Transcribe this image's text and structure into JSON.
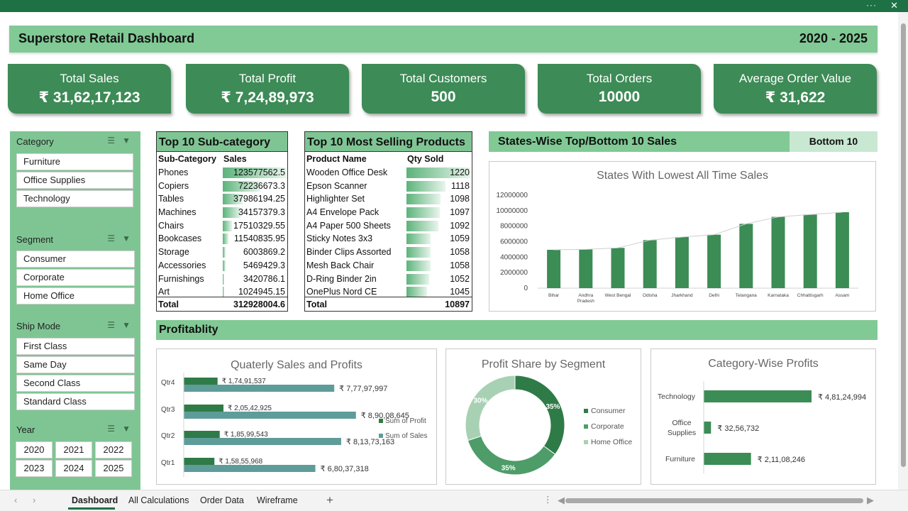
{
  "window": {
    "more_glyph": "···",
    "close_glyph": "✕"
  },
  "dashboard": {
    "title": "Superstore Retail Dashboard",
    "years": "2020 - 2025"
  },
  "kpis": [
    {
      "label": "Total Sales",
      "value": "₹ 31,62,17,123"
    },
    {
      "label": "Total Profit",
      "value": "₹ 7,24,89,973"
    },
    {
      "label": "Total Customers",
      "value": "500"
    },
    {
      "label": "Total Orders",
      "value": "10000"
    },
    {
      "label": "Average Order Value",
      "value": "₹ 31,622"
    }
  ],
  "slicers": {
    "category": {
      "title": "Category",
      "items": [
        "Furniture",
        "Office Supplies",
        "Technology"
      ]
    },
    "segment": {
      "title": "Segment",
      "items": [
        "Consumer",
        "Corporate",
        "Home Office"
      ]
    },
    "ship_mode": {
      "title": "Ship Mode",
      "items": [
        "First Class",
        "Same Day",
        "Second Class",
        "Standard Class"
      ]
    },
    "year": {
      "title": "Year",
      "items": [
        "2020",
        "2021",
        "2022",
        "2023",
        "2024",
        "2025"
      ]
    }
  },
  "subcategory_table": {
    "title": "Top 10 Sub-category",
    "headers": [
      "Sub-Category",
      "Sales"
    ],
    "rows": [
      {
        "name": "Phones",
        "value": "123577562.5",
        "num": 123577562.5
      },
      {
        "name": "Copiers",
        "value": "72236673.3",
        "num": 72236673.3
      },
      {
        "name": "Tables",
        "value": "37986194.25",
        "num": 37986194.25
      },
      {
        "name": "Machines",
        "value": "34157379.3",
        "num": 34157379.3
      },
      {
        "name": "Chairs",
        "value": "17510329.55",
        "num": 17510329.55
      },
      {
        "name": "Bookcases",
        "value": "11540835.95",
        "num": 11540835.95
      },
      {
        "name": "Storage",
        "value": "6003869.2",
        "num": 6003869.2
      },
      {
        "name": "Accessories",
        "value": "5469429.3",
        "num": 5469429.3
      },
      {
        "name": "Furnishings",
        "value": "3420786.1",
        "num": 3420786.1
      },
      {
        "name": "Art",
        "value": "1024945.15",
        "num": 1024945.15
      }
    ],
    "total_label": "Total",
    "total_value": "312928004.6"
  },
  "products_table": {
    "title": "Top 10 Most Selling Products",
    "headers": [
      "Product Name",
      "Qty Sold"
    ],
    "rows": [
      {
        "name": "Wooden Office Desk",
        "value": "1220",
        "num": 1220
      },
      {
        "name": "Epson Scanner",
        "value": "1118",
        "num": 1118
      },
      {
        "name": "Highlighter Set",
        "value": "1098",
        "num": 1098
      },
      {
        "name": "A4 Envelope Pack",
        "value": "1097",
        "num": 1097
      },
      {
        "name": "A4 Paper 500 Sheets",
        "value": "1092",
        "num": 1092
      },
      {
        "name": "Sticky Notes 3x3",
        "value": "1059",
        "num": 1059
      },
      {
        "name": "Binder Clips Assorted",
        "value": "1058",
        "num": 1058
      },
      {
        "name": "Mesh Back Chair",
        "value": "1058",
        "num": 1058
      },
      {
        "name": "D-Ring Binder 2in",
        "value": "1052",
        "num": 1052
      },
      {
        "name": "OnePlus Nord CE",
        "value": "1045",
        "num": 1045
      }
    ],
    "total_label": "Total",
    "total_value": "10897"
  },
  "states_section": {
    "title": "States-Wise Top/Bottom 10 Sales",
    "toggle": "Bottom 10"
  },
  "profit_section": {
    "title": "Profitablity"
  },
  "sheet_tabs": [
    "Dashboard",
    "All Calculations",
    "Order Data",
    "Wireframe"
  ],
  "colors": {
    "brand_green": "#1e7145",
    "kpi_green": "#3d8b56",
    "band_green": "#81c995",
    "bar_green": "#3b8c55",
    "teal_bar": "#5e9c9a"
  },
  "chart_data": [
    {
      "type": "bar",
      "title": "States With Lowest All Time Sales",
      "categories": [
        "Bihar",
        "Andhra Pradesh",
        "West Bengal",
        "Odisha",
        "Jharkhand",
        "Delhi",
        "Telangana",
        "Karnataka",
        "Chhattisgarh",
        "Assam"
      ],
      "values": [
        4950000,
        5000000,
        5200000,
        6200000,
        6600000,
        6900000,
        8300000,
        9200000,
        9500000,
        9800000
      ],
      "ylim": [
        0,
        12000000
      ],
      "yticks": [
        "12000000",
        "10000000",
        "8000000",
        "6000000",
        "4000000",
        "2000000",
        "0"
      ],
      "grid": false,
      "legend": "none"
    },
    {
      "type": "bar",
      "title": "Quaterly Sales and Profits",
      "categories": [
        "Qtr1",
        "Qtr2",
        "Qtr3",
        "Qtr4"
      ],
      "series": [
        {
          "name": "Sum of Profit",
          "values": [
            15855968,
            18599543,
            20542925,
            17491537
          ],
          "labels": [
            "₹ 1,58,55,968",
            "₹ 1,85,99,543",
            "₹ 2,05,42,925",
            "₹ 1,74,91,537"
          ]
        },
        {
          "name": "Sum of Sales",
          "values": [
            68037318,
            81373163,
            89008645,
            77797997
          ],
          "labels": [
            "₹ 6,80,37,318",
            "₹ 8,13,73,163",
            "₹ 8,90,08,645",
            "₹ 7,77,97,997"
          ]
        }
      ],
      "orientation": "horizontal",
      "legend": "right"
    },
    {
      "type": "pie",
      "title": "Profit Share by Segment",
      "categories": [
        "Consumer",
        "Corporate",
        "Home Office"
      ],
      "values": [
        35,
        35,
        30
      ],
      "labels": [
        "35%",
        "35%",
        "30%"
      ],
      "donut": true,
      "legend": "right"
    },
    {
      "type": "bar",
      "title": "Category-Wise Profits",
      "categories": [
        "Technology",
        "Office Supplies",
        "Furniture"
      ],
      "values": [
        48124994,
        3256732,
        21108246
      ],
      "labels": [
        "₹ 4,81,24,994",
        "₹ 32,56,732",
        "₹ 2,11,08,246"
      ],
      "orientation": "horizontal",
      "legend": "none"
    }
  ]
}
